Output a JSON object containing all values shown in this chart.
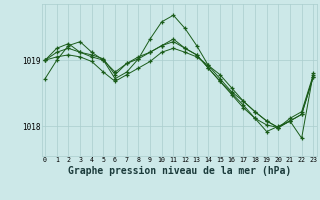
{
  "bg_color": "#cce8e8",
  "grid_color_v": "#aacece",
  "grid_color_h": "#aacece",
  "line_color": "#1a5c1a",
  "xlabel": "Graphe pression niveau de la mer (hPa)",
  "xlabel_fontsize": 7.0,
  "ylabel_ticks": [
    1018,
    1019
  ],
  "xlim": [
    0,
    23
  ],
  "ylim": [
    1017.55,
    1019.85
  ],
  "xticks": [
    0,
    1,
    2,
    3,
    4,
    5,
    6,
    7,
    8,
    9,
    10,
    11,
    12,
    13,
    14,
    15,
    16,
    17,
    18,
    19,
    20,
    21,
    22,
    23
  ],
  "series": [
    [
      1018.72,
      1019.0,
      1019.22,
      1019.28,
      1019.12,
      1019.0,
      1018.82,
      1018.95,
      1019.05,
      1019.12,
      1019.22,
      1019.28,
      1019.18,
      1019.08,
      1018.88,
      1018.68,
      1018.5,
      1018.32,
      1018.12,
      1017.92,
      1018.0,
      1018.08,
      1017.82,
      1018.8
    ],
    [
      1019.0,
      1019.18,
      1019.25,
      1019.12,
      1019.05,
      1019.0,
      1018.72,
      1018.82,
      1019.02,
      1019.32,
      1019.58,
      1019.68,
      1019.48,
      1019.22,
      1018.92,
      1018.72,
      1018.52,
      1018.38,
      1018.22,
      1018.08,
      1017.98,
      1018.12,
      1018.22,
      1018.78
    ],
    [
      1019.0,
      1019.12,
      1019.18,
      1019.12,
      1019.08,
      1019.02,
      1018.78,
      1018.95,
      1019.02,
      1019.12,
      1019.22,
      1019.32,
      1019.18,
      1019.08,
      1018.88,
      1018.68,
      1018.48,
      1018.28,
      1018.12,
      1018.02,
      1017.98,
      1018.08,
      1018.18,
      1018.75
    ],
    [
      1019.0,
      1019.05,
      1019.08,
      1019.05,
      1018.98,
      1018.82,
      1018.68,
      1018.78,
      1018.88,
      1018.98,
      1019.12,
      1019.18,
      1019.12,
      1019.05,
      1018.92,
      1018.78,
      1018.58,
      1018.38,
      1018.22,
      1018.08,
      1017.98,
      1018.08,
      1018.18,
      1018.75
    ]
  ]
}
